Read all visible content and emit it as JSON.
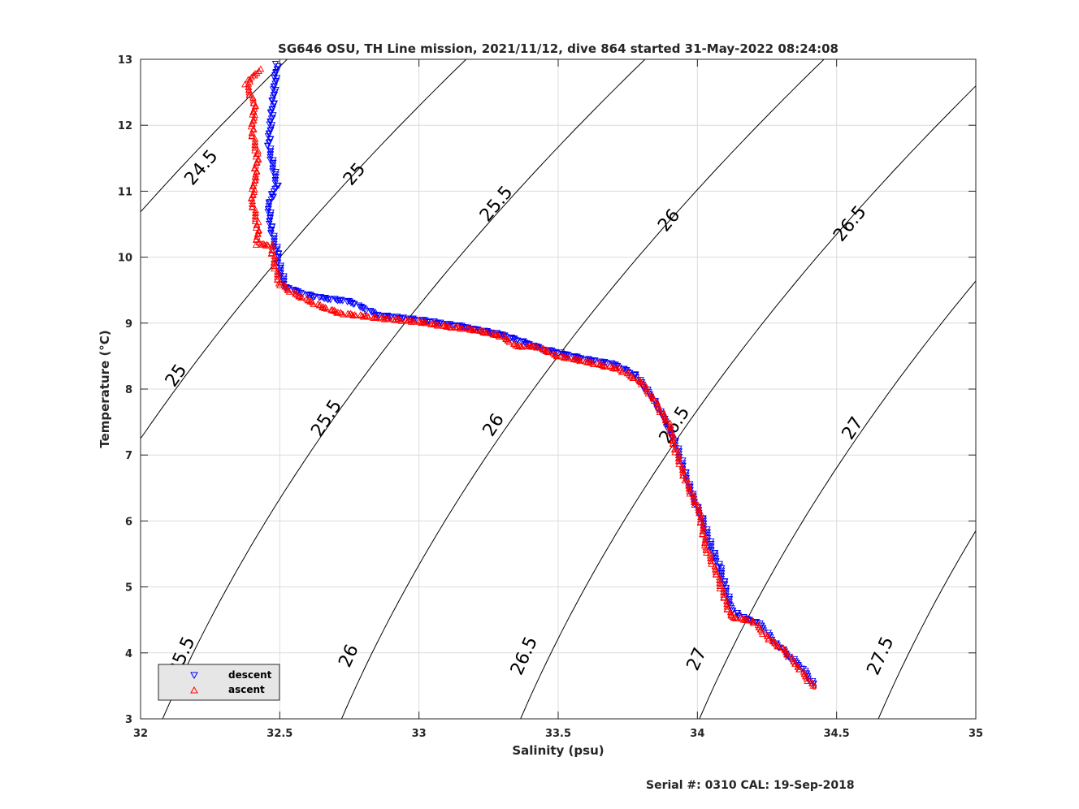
{
  "chart_data": {
    "type": "scatter",
    "title": "SG646 OSU, TH Line mission, 2021/11/12, dive 864 started 31-May-2022 08:24:08",
    "xlabel": "Salinity (psu)",
    "ylabel": "Temperature (°C)",
    "xlim": [
      32,
      35
    ],
    "ylim": [
      3,
      13
    ],
    "xticks": [
      "32",
      "32.5",
      "33",
      "33.5",
      "34",
      "34.5",
      "35"
    ],
    "yticks": [
      "3",
      "4",
      "5",
      "6",
      "7",
      "8",
      "9",
      "10",
      "11",
      "12",
      "13"
    ],
    "grid": true,
    "legend_position": "bottom-left",
    "footer": "Serial #: 0310  CAL: 19-Sep-2018",
    "series": [
      {
        "name": "descent",
        "marker": "triangle-down",
        "color": "#0000ff",
        "path": [
          [
            32.49,
            12.92
          ],
          [
            32.48,
            12.5
          ],
          [
            32.47,
            12.1
          ],
          [
            32.46,
            11.7
          ],
          [
            32.49,
            11.1
          ],
          [
            32.46,
            10.8
          ],
          [
            32.47,
            10.4
          ],
          [
            32.49,
            10.1
          ],
          [
            32.5,
            9.85
          ],
          [
            32.52,
            9.55
          ],
          [
            32.58,
            9.45
          ],
          [
            32.65,
            9.38
          ],
          [
            32.75,
            9.33
          ],
          [
            32.85,
            9.12
          ],
          [
            33.0,
            9.05
          ],
          [
            33.15,
            8.95
          ],
          [
            33.3,
            8.82
          ],
          [
            33.45,
            8.6
          ],
          [
            33.6,
            8.45
          ],
          [
            33.7,
            8.38
          ],
          [
            33.78,
            8.2
          ],
          [
            33.84,
            7.85
          ],
          [
            33.88,
            7.55
          ],
          [
            33.92,
            7.2
          ],
          [
            33.95,
            6.8
          ],
          [
            33.98,
            6.4
          ],
          [
            34.02,
            6.0
          ],
          [
            34.05,
            5.6
          ],
          [
            34.08,
            5.3
          ],
          [
            34.1,
            5.0
          ],
          [
            34.12,
            4.7
          ],
          [
            34.15,
            4.55
          ],
          [
            34.22,
            4.45
          ],
          [
            34.28,
            4.15
          ],
          [
            34.33,
            3.95
          ],
          [
            34.38,
            3.75
          ],
          [
            34.42,
            3.5
          ]
        ]
      },
      {
        "name": "ascent",
        "marker": "triangle-up",
        "color": "#ff0000",
        "path": [
          [
            32.43,
            12.84
          ],
          [
            32.4,
            12.72
          ],
          [
            32.38,
            12.62
          ],
          [
            32.41,
            12.3
          ],
          [
            32.4,
            11.9
          ],
          [
            32.42,
            11.55
          ],
          [
            32.41,
            11.2
          ],
          [
            32.4,
            10.85
          ],
          [
            32.42,
            10.5
          ],
          [
            32.42,
            10.2
          ],
          [
            32.47,
            10.18
          ],
          [
            32.48,
            9.9
          ],
          [
            32.5,
            9.6
          ],
          [
            32.55,
            9.45
          ],
          [
            32.65,
            9.25
          ],
          [
            32.72,
            9.15
          ],
          [
            32.85,
            9.08
          ],
          [
            33.0,
            9.02
          ],
          [
            33.1,
            8.95
          ],
          [
            33.2,
            8.9
          ],
          [
            33.3,
            8.8
          ],
          [
            33.35,
            8.65
          ],
          [
            33.42,
            8.65
          ],
          [
            33.5,
            8.5
          ],
          [
            33.6,
            8.42
          ],
          [
            33.72,
            8.3
          ],
          [
            33.8,
            8.1
          ],
          [
            33.85,
            7.8
          ],
          [
            33.9,
            7.45
          ],
          [
            33.92,
            7.1
          ],
          [
            33.96,
            6.6
          ],
          [
            34.01,
            6.1
          ],
          [
            34.03,
            5.6
          ],
          [
            34.07,
            5.2
          ],
          [
            34.1,
            4.8
          ],
          [
            34.12,
            4.55
          ],
          [
            34.2,
            4.48
          ],
          [
            34.26,
            4.2
          ],
          [
            34.31,
            4.05
          ],
          [
            34.36,
            3.8
          ],
          [
            34.42,
            3.48
          ]
        ]
      }
    ],
    "contours": [
      {
        "sigma": "24.5",
        "labels": [
          [
            32.22,
            11.35
          ]
        ]
      },
      {
        "sigma": "25",
        "labels": [
          [
            32.13,
            8.2
          ],
          [
            32.77,
            11.25
          ]
        ]
      },
      {
        "sigma": "25.5",
        "labels": [
          [
            32.15,
            3.95
          ],
          [
            32.67,
            7.55
          ],
          [
            33.28,
            10.8
          ]
        ]
      },
      {
        "sigma": "26",
        "labels": [
          [
            32.75,
            3.95
          ],
          [
            33.27,
            7.45
          ],
          [
            33.9,
            10.55
          ]
        ]
      },
      {
        "sigma": "26.5",
        "labels": [
          [
            33.38,
            3.95
          ],
          [
            33.92,
            7.45
          ],
          [
            34.55,
            10.5
          ]
        ]
      },
      {
        "sigma": "27",
        "labels": [
          [
            34.0,
            3.9
          ],
          [
            34.56,
            7.4
          ]
        ]
      },
      {
        "sigma": "27.5",
        "labels": [
          [
            34.66,
            3.95
          ]
        ]
      }
    ]
  }
}
